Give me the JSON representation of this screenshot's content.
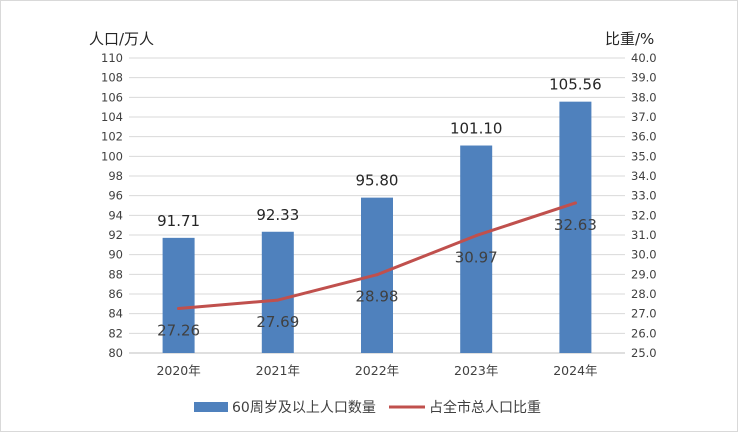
{
  "chart_data": {
    "type": "bar",
    "categories": [
      "2020年",
      "2021年",
      "2022年",
      "2023年",
      "2024年"
    ],
    "series": [
      {
        "name": "60周岁及以上人口数量",
        "type": "bar",
        "axis": "left",
        "values": [
          91.71,
          92.33,
          95.8,
          101.1,
          105.56
        ],
        "labels": [
          "91.71",
          "92.33",
          "95.80",
          "101.10",
          "105.56"
        ],
        "color": "#4f81bd"
      },
      {
        "name": "占全市总人口比重",
        "type": "line",
        "axis": "right",
        "values": [
          27.26,
          27.69,
          28.98,
          30.97,
          32.63
        ],
        "labels": [
          "27.26",
          "27.69",
          "28.98",
          "30.97",
          "32.63"
        ],
        "color": "#c0504d"
      }
    ],
    "y_left": {
      "label": "人口/万人",
      "ylim": [
        80,
        110
      ],
      "ticks": [
        "80",
        "82",
        "84",
        "86",
        "88",
        "90",
        "92",
        "94",
        "96",
        "98",
        "100",
        "102",
        "104",
        "106",
        "108",
        "110"
      ]
    },
    "y_right": {
      "label": "比重/%",
      "ylim": [
        25,
        40
      ],
      "ticks": [
        "25.0",
        "26.0",
        "27.0",
        "28.0",
        "29.0",
        "30.0",
        "31.0",
        "32.0",
        "33.0",
        "34.0",
        "35.0",
        "36.0",
        "37.0",
        "38.0",
        "39.0",
        "40.0"
      ]
    },
    "grid": true,
    "legend_position": "bottom"
  }
}
